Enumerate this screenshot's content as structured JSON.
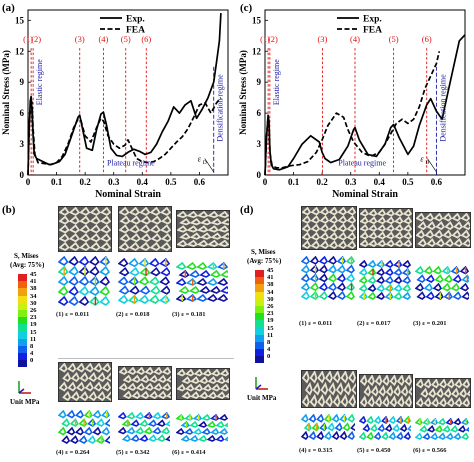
{
  "chart_data": [
    {
      "panel": "(a)",
      "type": "line",
      "xlabel": "Nominal Strain",
      "ylabel": "Nominal Stress (MPa)",
      "xlim": [
        0,
        0.7
      ],
      "ylim": [
        0,
        16
      ],
      "xticks": [
        "0",
        "0.1",
        "0.2",
        "0.3",
        "0.4",
        "0.5",
        "0.6"
      ],
      "yticks": [
        "0",
        "3",
        "6",
        "9",
        "12",
        "15"
      ],
      "legend": [
        "Exp.",
        "FEA"
      ],
      "legend_position": "top-center",
      "series": [
        {
          "name": "Exp.",
          "style": "solid",
          "x": [
            0,
            0.004,
            0.008,
            0.011,
            0.014,
            0.018,
            0.022,
            0.03,
            0.045,
            0.06,
            0.075,
            0.09,
            0.11,
            0.13,
            0.155,
            0.175,
            0.181,
            0.19,
            0.205,
            0.225,
            0.24,
            0.255,
            0.264,
            0.275,
            0.29,
            0.31,
            0.33,
            0.35,
            0.37,
            0.39,
            0.41,
            0.43,
            0.45,
            0.47,
            0.49,
            0.51,
            0.53,
            0.55,
            0.57,
            0.59,
            0.61,
            0.63,
            0.65,
            0.66,
            0.67,
            0.675
          ],
          "y": [
            0,
            4.5,
            7.2,
            7.6,
            6.2,
            3.8,
            2.0,
            1.6,
            1.4,
            1.2,
            1.0,
            1.1,
            1.3,
            2.0,
            4.0,
            5.6,
            5.8,
            4.6,
            2.6,
            2.4,
            4.4,
            5.9,
            6.1,
            4.8,
            2.6,
            1.9,
            1.8,
            2.2,
            2.5,
            2.3,
            2.0,
            2.2,
            3.0,
            4.2,
            5.2,
            6.6,
            6.0,
            6.8,
            7.2,
            5.5,
            6.4,
            7.5,
            9.0,
            11.0,
            13.0,
            15.7
          ]
        },
        {
          "name": "FEA",
          "style": "dashed",
          "x": [
            0,
            0.005,
            0.01,
            0.014,
            0.018,
            0.024,
            0.035,
            0.06,
            0.08,
            0.1,
            0.12,
            0.14,
            0.16,
            0.175,
            0.185,
            0.2,
            0.22,
            0.24,
            0.255,
            0.265,
            0.28,
            0.3,
            0.32,
            0.34,
            0.35,
            0.36,
            0.38,
            0.4,
            0.42,
            0.44,
            0.46,
            0.48,
            0.5,
            0.52,
            0.54,
            0.56,
            0.58,
            0.6,
            0.62,
            0.64,
            0.66,
            0.675
          ],
          "y": [
            0,
            5.0,
            7.3,
            7.0,
            4.5,
            2.0,
            1.2,
            1.1,
            1.0,
            1.2,
            1.8,
            3.0,
            4.6,
            5.4,
            5.3,
            3.8,
            3.2,
            4.6,
            5.5,
            5.2,
            3.8,
            3.0,
            2.6,
            2.9,
            3.4,
            2.8,
            1.6,
            1.3,
            1.2,
            1.3,
            1.6,
            2.0,
            2.6,
            3.2,
            3.7,
            4.5,
            5.6,
            6.8,
            7.0,
            6.0,
            7.0,
            7.5
          ]
        }
      ],
      "markers": [
        "(1)",
        "(2)",
        "(3)",
        "(4)",
        "(5)",
        "(6)"
      ],
      "marker_x": [
        0.011,
        0.018,
        0.181,
        0.264,
        0.342,
        0.414
      ],
      "densification_x": 0.65,
      "annotations": {
        "elastic": "Elastic regime",
        "plateau": "Plateau regime",
        "densification": "Densification regime",
        "eps_d": "ε",
        "eps_d_sub": "D"
      }
    },
    {
      "panel": "(c)",
      "type": "line",
      "xlabel": "Nominal Strain",
      "ylabel": "Nominal Stress (MPa)",
      "xlim": [
        0,
        0.7
      ],
      "ylim": [
        0,
        16
      ],
      "xticks": [
        "0",
        "0.1",
        "0.2",
        "0.3",
        "0.4",
        "0.5",
        "0.6"
      ],
      "yticks": [
        "0",
        "3",
        "6",
        "9",
        "12",
        "15"
      ],
      "legend": [
        "Exp.",
        "FEA"
      ],
      "legend_position": "top-center",
      "series": [
        {
          "name": "Exp.",
          "style": "solid",
          "x": [
            0,
            0.005,
            0.011,
            0.014,
            0.017,
            0.022,
            0.03,
            0.05,
            0.08,
            0.1,
            0.13,
            0.16,
            0.19,
            0.2,
            0.21,
            0.23,
            0.26,
            0.29,
            0.31,
            0.315,
            0.33,
            0.36,
            0.39,
            0.42,
            0.44,
            0.45,
            0.47,
            0.5,
            0.52,
            0.54,
            0.566,
            0.58,
            0.6,
            0.62,
            0.64,
            0.66,
            0.68,
            0.7
          ],
          "y": [
            0,
            3.5,
            5.8,
            5.2,
            2.4,
            1.0,
            0.6,
            0.5,
            0.8,
            1.6,
            3.0,
            3.8,
            3.2,
            2.2,
            1.6,
            1.2,
            1.5,
            2.8,
            4.4,
            4.6,
            3.4,
            2.0,
            1.8,
            3.0,
            4.6,
            4.9,
            3.6,
            2.0,
            2.8,
            4.8,
            6.8,
            7.4,
            6.2,
            5.4,
            8.0,
            10.5,
            13.0,
            13.6
          ]
        },
        {
          "name": "FEA",
          "style": "dashed",
          "x": [
            0,
            0.006,
            0.01,
            0.014,
            0.018,
            0.025,
            0.04,
            0.06,
            0.09,
            0.12,
            0.15,
            0.18,
            0.2,
            0.22,
            0.25,
            0.275,
            0.29,
            0.31,
            0.34,
            0.37,
            0.4,
            0.42,
            0.44,
            0.46,
            0.48,
            0.5,
            0.52,
            0.54,
            0.56,
            0.58,
            0.6,
            0.61
          ],
          "y": [
            0,
            4.0,
            5.4,
            4.8,
            2.0,
            0.9,
            0.7,
            0.7,
            0.9,
            1.0,
            1.3,
            2.2,
            3.4,
            4.8,
            6.0,
            5.6,
            4.4,
            3.2,
            2.2,
            1.8,
            2.2,
            3.0,
            4.0,
            5.0,
            5.4,
            5.0,
            5.4,
            6.6,
            8.4,
            9.6,
            10.8,
            12.0
          ]
        }
      ],
      "markers": [
        "(1)",
        "(2)",
        "(3)",
        "(4)",
        "(5)",
        "(6)"
      ],
      "marker_x": [
        0.011,
        0.017,
        0.201,
        0.315,
        0.45,
        0.566
      ],
      "densification_x": 0.6,
      "annotations": {
        "elastic": "Elastic regime",
        "plateau": "Plateau regime",
        "densification": "Densification regime",
        "eps_d": "ε",
        "eps_d_sub": "D"
      }
    }
  ],
  "panels": {
    "b": {
      "label": "(b)",
      "legend_title_1": "S, Mises",
      "legend_title_2": "(Avg: 75%)",
      "levels": [
        "45",
        "41",
        "38",
        "34",
        "30",
        "26",
        "23",
        "19",
        "15",
        "11",
        "8",
        "4",
        "0"
      ],
      "unit": "Unit MPa",
      "captions": [
        "(1) ε = 0.011",
        "(2) ε = 0.018",
        "(3) ε = 0.181",
        "(4) ε = 0.264",
        "(5) ε = 0.342",
        "(6) ε = 0.414"
      ]
    },
    "d": {
      "label": "(d)",
      "legend_title_1": "S, Mises",
      "legend_title_2": "(Avg: 75%)",
      "levels": [
        "45",
        "41",
        "38",
        "34",
        "30",
        "26",
        "23",
        "19",
        "15",
        "11",
        "8",
        "4",
        "0"
      ],
      "unit": "Unit MPa",
      "captions": [
        "(1) ε = 0.011",
        "(2) ε = 0.017",
        "(3) ε = 0.201",
        "(4) ε = 0.315",
        "(5) ε = 0.450",
        "(6) ε = 0.566"
      ]
    }
  },
  "colors": {
    "exp": "#000000",
    "fea": "#000000",
    "marker": "#e01010",
    "densification": "#1a1aa8",
    "annotation": "#1a1aa8",
    "contour": [
      "#e02020",
      "#f06010",
      "#f0a010",
      "#f0e010",
      "#c8f010",
      "#80f010",
      "#20e020",
      "#10e090",
      "#10d0e0",
      "#10a0f0",
      "#1060f0",
      "#1020e0",
      "#1010a0"
    ]
  }
}
